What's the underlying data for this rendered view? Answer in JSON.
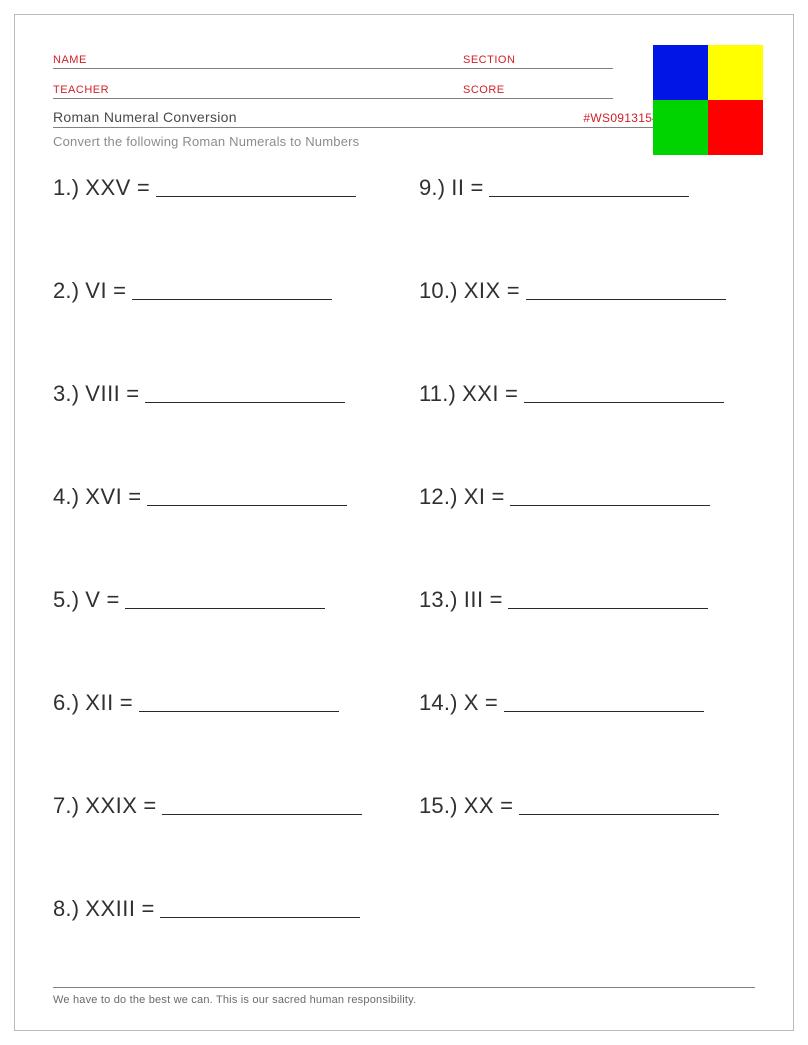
{
  "header": {
    "name_label": "NAME",
    "section_label": "SECTION",
    "teacher_label": "TEACHER",
    "score_label": "SCORE",
    "label_color": "#d0202a"
  },
  "title": "Roman Numeral Conversion",
  "worksheet_id": "#WS0913154535069",
  "instruction": "Convert the following Roman Numerals to Numbers",
  "logo": {
    "top_left": "#0015e6",
    "top_right": "#ffff00",
    "bottom_left": "#00d400",
    "bottom_right": "#ff0000"
  },
  "problems": {
    "left": [
      {
        "n": "1.)",
        "rn": "XXV"
      },
      {
        "n": "2.)",
        "rn": "VI"
      },
      {
        "n": "3.)",
        "rn": "VIII"
      },
      {
        "n": "4.)",
        "rn": "XVI"
      },
      {
        "n": "5.)",
        "rn": "V"
      },
      {
        "n": "6.)",
        "rn": "XII"
      },
      {
        "n": "7.)",
        "rn": "XXIX"
      },
      {
        "n": "8.)",
        "rn": "XXIII"
      }
    ],
    "right": [
      {
        "n": "9.)",
        "rn": "II"
      },
      {
        "n": "10.)",
        "rn": "XIX"
      },
      {
        "n": "11.)",
        "rn": "XXI"
      },
      {
        "n": "12.)",
        "rn": "XI"
      },
      {
        "n": "13.)",
        "rn": "III"
      },
      {
        "n": "14.)",
        "rn": "X"
      },
      {
        "n": "15.)",
        "rn": "XX"
      }
    ],
    "equals": "="
  },
  "footer": "We have to do the best we can. This is our sacred human responsibility.",
  "style": {
    "page_border": "#bbbbbb",
    "rule_color": "#808080",
    "text_color": "#303030",
    "muted_color": "#8c8c8c",
    "problem_fontsize": 22,
    "header_fontsize": 11,
    "title_fontsize": 14,
    "footer_fontsize": 11
  }
}
